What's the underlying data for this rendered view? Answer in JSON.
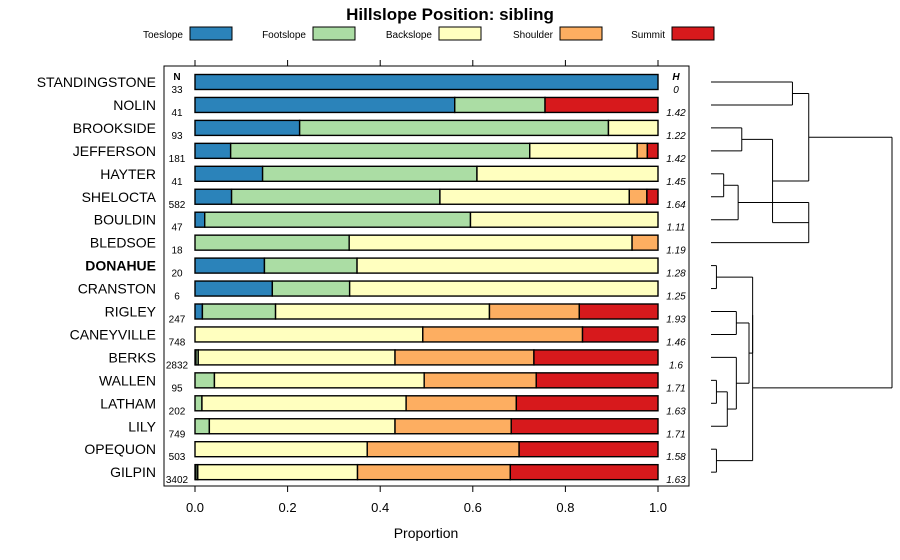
{
  "chart_data": {
    "type": "bar",
    "subtype": "stacked-horizontal-proportion",
    "title": "Hillslope Position: sibling",
    "xlabel": "Proportion",
    "xlim": [
      0,
      1
    ],
    "xticks": [
      "0.0",
      "0.2",
      "0.4",
      "0.6",
      "0.8",
      "1.0"
    ],
    "n_header": "N",
    "h_header": "H",
    "series": [
      {
        "name": "Toeslope",
        "color": "#2b83ba"
      },
      {
        "name": "Footslope",
        "color": "#abdda4"
      },
      {
        "name": "Backslope",
        "color": "#ffffbf"
      },
      {
        "name": "Shoulder",
        "color": "#fdae61"
      },
      {
        "name": "Summit",
        "color": "#d7191c"
      }
    ],
    "rows": [
      {
        "label": "STANDINGSTONE",
        "n": "33",
        "h": "0",
        "bold": false,
        "values": [
          1.0,
          0,
          0,
          0,
          0
        ]
      },
      {
        "label": "NOLIN",
        "n": "41",
        "h": "1.42",
        "bold": false,
        "values": [
          0.561,
          0.195,
          0,
          0,
          0.244
        ]
      },
      {
        "label": "BROOKSIDE",
        "n": "93",
        "h": "1.22",
        "bold": false,
        "values": [
          0.226,
          0.667,
          0.107,
          0,
          0
        ]
      },
      {
        "label": "JEFFERSON",
        "n": "181",
        "h": "1.42",
        "bold": false,
        "values": [
          0.077,
          0.646,
          0.232,
          0.022,
          0.023
        ]
      },
      {
        "label": "HAYTER",
        "n": "41",
        "h": "1.45",
        "bold": false,
        "values": [
          0.146,
          0.463,
          0.391,
          0,
          0
        ]
      },
      {
        "label": "SHELOCTA",
        "n": "582",
        "h": "1.64",
        "bold": false,
        "values": [
          0.079,
          0.45,
          0.409,
          0.038,
          0.024
        ]
      },
      {
        "label": "BOULDIN",
        "n": "47",
        "h": "1.11",
        "bold": false,
        "values": [
          0.021,
          0.574,
          0.405,
          0,
          0
        ]
      },
      {
        "label": "BLEDSOE",
        "n": "18",
        "h": "1.19",
        "bold": false,
        "values": [
          0,
          0.333,
          0.611,
          0.056,
          0
        ]
      },
      {
        "label": "DONAHUE",
        "n": "20",
        "h": "1.28",
        "bold": true,
        "values": [
          0.15,
          0.2,
          0.65,
          0,
          0
        ]
      },
      {
        "label": "CRANSTON",
        "n": "6",
        "h": "1.25",
        "bold": false,
        "values": [
          0.167,
          0.167,
          0.666,
          0,
          0
        ]
      },
      {
        "label": "RIGLEY",
        "n": "247",
        "h": "1.93",
        "bold": false,
        "values": [
          0.016,
          0.158,
          0.462,
          0.194,
          0.17
        ]
      },
      {
        "label": "CANEYVILLE",
        "n": "748",
        "h": "1.46",
        "bold": false,
        "values": [
          0,
          0,
          0.492,
          0.345,
          0.163
        ]
      },
      {
        "label": "BERKS",
        "n": "2832",
        "h": "1.6",
        "bold": false,
        "values": [
          0.002,
          0.005,
          0.425,
          0.3,
          0.268
        ]
      },
      {
        "label": "WALLEN",
        "n": "95",
        "h": "1.71",
        "bold": false,
        "values": [
          0,
          0.042,
          0.453,
          0.242,
          0.263
        ]
      },
      {
        "label": "LATHAM",
        "n": "202",
        "h": "1.63",
        "bold": false,
        "values": [
          0,
          0.015,
          0.441,
          0.238,
          0.306
        ]
      },
      {
        "label": "LILY",
        "n": "749",
        "h": "1.71",
        "bold": false,
        "values": [
          0,
          0.031,
          0.401,
          0.251,
          0.317
        ]
      },
      {
        "label": "OPEQUON",
        "n": "503",
        "h": "1.58",
        "bold": false,
        "values": [
          0,
          0,
          0.372,
          0.328,
          0.3
        ]
      },
      {
        "label": "GILPIN",
        "n": "3402",
        "h": "1.63",
        "bold": false,
        "values": [
          0.002,
          0.004,
          0.345,
          0.33,
          0.319
        ]
      }
    ]
  }
}
